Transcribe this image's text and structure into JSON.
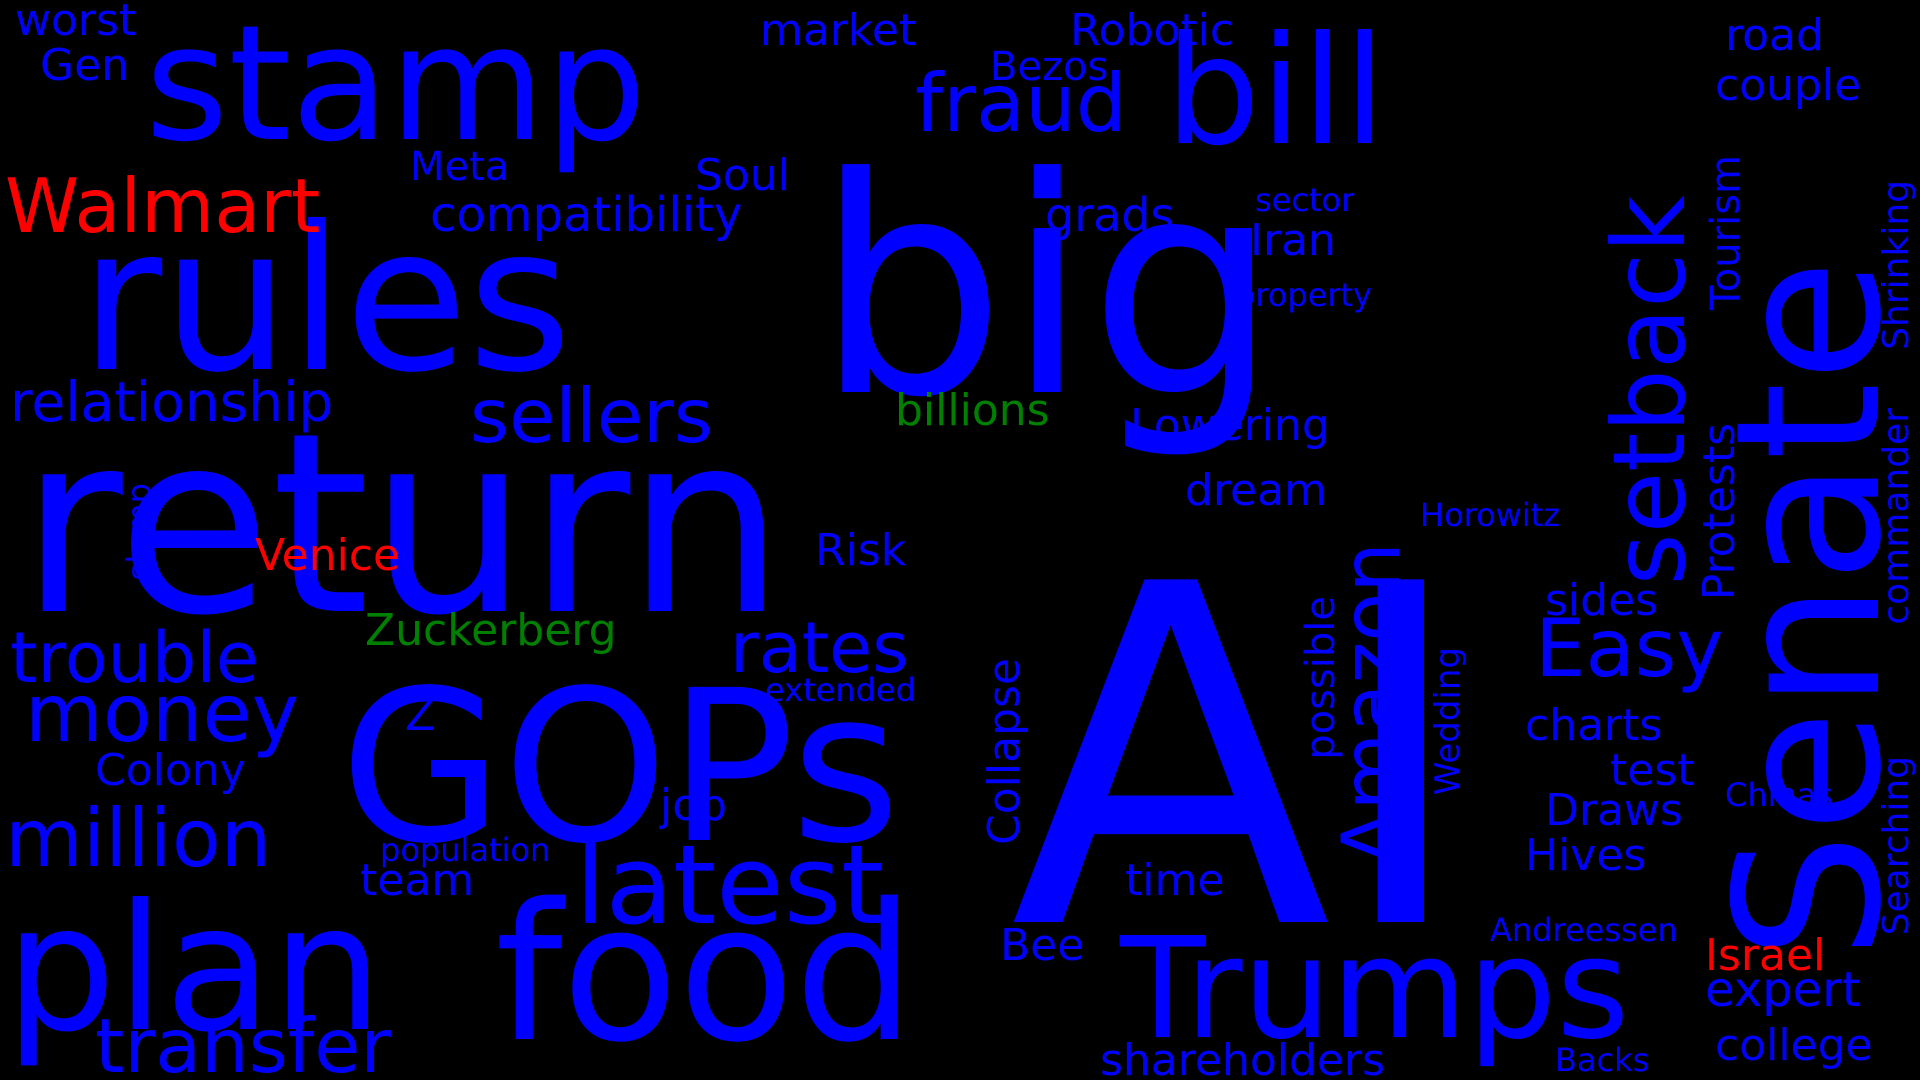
{
  "palette": {
    "blue": "#0000ff",
    "red": "#ff0000",
    "green": "#008000",
    "background": "#000000"
  },
  "words": [
    {
      "text": "big",
      "color": "blue"
    },
    {
      "text": "AI",
      "color": "blue"
    },
    {
      "text": "return",
      "color": "blue"
    },
    {
      "text": "stamp",
      "color": "blue"
    },
    {
      "text": "rules",
      "color": "blue"
    },
    {
      "text": "bill",
      "color": "blue"
    },
    {
      "text": "Senate",
      "color": "blue"
    },
    {
      "text": "GOPs",
      "color": "blue"
    },
    {
      "text": "plan",
      "color": "blue"
    },
    {
      "text": "food",
      "color": "blue"
    },
    {
      "text": "Trumps",
      "color": "blue"
    },
    {
      "text": "latest",
      "color": "blue"
    },
    {
      "text": "setback",
      "color": "blue"
    },
    {
      "text": "Amazon",
      "color": "blue"
    },
    {
      "text": "fraud",
      "color": "blue"
    },
    {
      "text": "Walmart",
      "color": "red"
    },
    {
      "text": "sellers",
      "color": "blue"
    },
    {
      "text": "relationship",
      "color": "blue"
    },
    {
      "text": "trouble",
      "color": "blue"
    },
    {
      "text": "money",
      "color": "blue"
    },
    {
      "text": "million",
      "color": "blue"
    },
    {
      "text": "transfer",
      "color": "blue"
    },
    {
      "text": "rates",
      "color": "blue"
    },
    {
      "text": "Easy",
      "color": "blue"
    },
    {
      "text": "compatibility",
      "color": "blue"
    },
    {
      "text": "market",
      "color": "blue"
    },
    {
      "text": "Robotic",
      "color": "blue"
    },
    {
      "text": "Bezos",
      "color": "blue"
    },
    {
      "text": "Meta",
      "color": "blue"
    },
    {
      "text": "Soul",
      "color": "blue"
    },
    {
      "text": "grads",
      "color": "blue"
    },
    {
      "text": "sector",
      "color": "blue"
    },
    {
      "text": "Iran",
      "color": "blue"
    },
    {
      "text": "property",
      "color": "blue"
    },
    {
      "text": "billions",
      "color": "green"
    },
    {
      "text": "Lowering",
      "color": "blue"
    },
    {
      "text": "dream",
      "color": "blue"
    },
    {
      "text": "Horowitz",
      "color": "blue"
    },
    {
      "text": "Venice",
      "color": "red"
    },
    {
      "text": "Risk",
      "color": "blue"
    },
    {
      "text": "Zuckerberg",
      "color": "green"
    },
    {
      "text": "extended",
      "color": "blue"
    },
    {
      "text": "Z",
      "color": "blue"
    },
    {
      "text": "Colony",
      "color": "blue"
    },
    {
      "text": "job",
      "color": "blue"
    },
    {
      "text": "population",
      "color": "blue"
    },
    {
      "text": "team",
      "color": "blue"
    },
    {
      "text": "time",
      "color": "blue"
    },
    {
      "text": "Bee",
      "color": "blue"
    },
    {
      "text": "shareholders",
      "color": "blue"
    },
    {
      "text": "Andreessen",
      "color": "blue"
    },
    {
      "text": "Israel",
      "color": "red"
    },
    {
      "text": "expert",
      "color": "blue"
    },
    {
      "text": "college",
      "color": "blue"
    },
    {
      "text": "Backs",
      "color": "blue"
    },
    {
      "text": "worst",
      "color": "blue"
    },
    {
      "text": "Gen",
      "color": "blue"
    },
    {
      "text": "road",
      "color": "blue"
    },
    {
      "text": "couple",
      "color": "blue"
    },
    {
      "text": "Tourism",
      "color": "blue"
    },
    {
      "text": "Protests",
      "color": "blue"
    },
    {
      "text": "Shrinking",
      "color": "blue"
    },
    {
      "text": "commander",
      "color": "blue"
    },
    {
      "text": "Searching",
      "color": "blue"
    },
    {
      "text": "sides",
      "color": "blue"
    },
    {
      "text": "charts",
      "color": "blue"
    },
    {
      "text": "test",
      "color": "blue"
    },
    {
      "text": "Draws",
      "color": "blue"
    },
    {
      "text": "Hives",
      "color": "blue"
    },
    {
      "text": "Chinas",
      "color": "blue"
    },
    {
      "text": "Wedding",
      "color": "blue"
    },
    {
      "text": "possible",
      "color": "blue"
    },
    {
      "text": "Collapse",
      "color": "blue"
    },
    {
      "text": "slump",
      "color": "blue"
    }
  ]
}
